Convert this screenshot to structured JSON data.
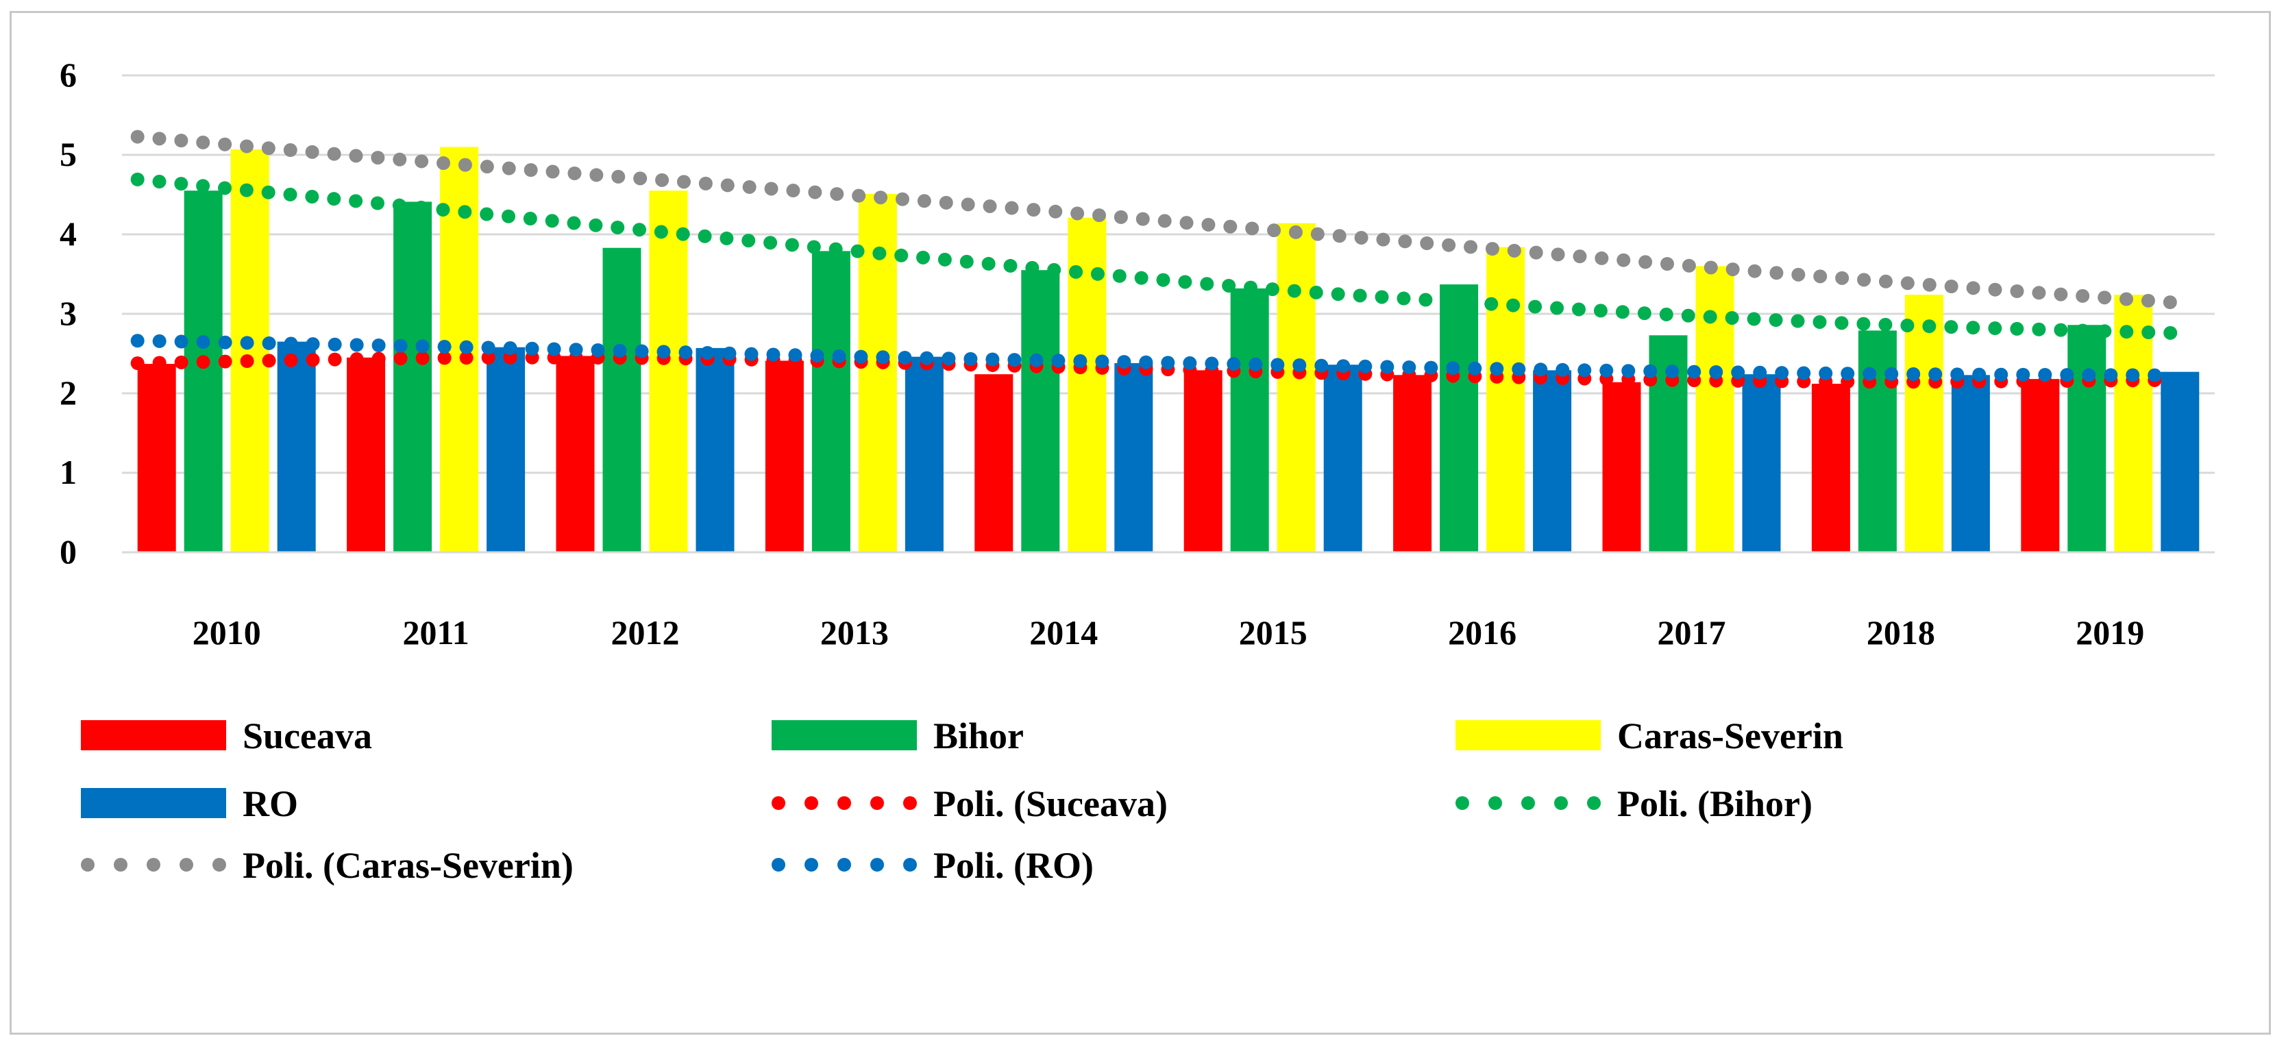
{
  "chart_data": {
    "type": "bar",
    "title": "",
    "xlabel": "",
    "ylabel": "",
    "ylim": [
      0,
      6
    ],
    "yticks": [
      0,
      1,
      2,
      3,
      4,
      5,
      6
    ],
    "grid": true,
    "legend_position": "bottom",
    "categories": [
      "2010",
      "2011",
      "2012",
      "2013",
      "2014",
      "2015",
      "2016",
      "2017",
      "2018",
      "2019"
    ],
    "series": [
      {
        "name": "Suceava",
        "color": "#ff0000",
        "values": [
          2.37,
          2.45,
          2.47,
          2.41,
          2.24,
          2.29,
          2.23,
          2.14,
          2.12,
          2.18
        ]
      },
      {
        "name": "Bihor",
        "color": "#00b050",
        "values": [
          4.55,
          4.41,
          3.83,
          3.79,
          3.55,
          3.32,
          3.37,
          2.73,
          2.79,
          2.86
        ]
      },
      {
        "name": "Caras-Severin",
        "color": "#ffff00",
        "values": [
          5.07,
          5.1,
          4.55,
          4.51,
          4.21,
          4.14,
          3.84,
          3.6,
          3.24,
          3.24
        ]
      },
      {
        "name": "RO",
        "color": "#0070c0",
        "values": [
          2.65,
          2.58,
          2.57,
          2.46,
          2.38,
          2.36,
          2.29,
          2.24,
          2.23,
          2.27
        ]
      }
    ],
    "trendlines": [
      {
        "name": "Poli. (Suceava)",
        "color": "#ff0000",
        "values": [
          2.4,
          2.45,
          2.45,
          2.4,
          2.33,
          2.27,
          2.21,
          2.16,
          2.14,
          2.16
        ]
      },
      {
        "name": "Poli. (Bihor)",
        "color": "#00b050",
        "values": [
          4.58,
          4.32,
          4.05,
          3.79,
          3.54,
          3.3,
          3.13,
          2.97,
          2.85,
          2.78
        ]
      },
      {
        "name": "Poli. (Caras-Severin)",
        "color": "#8c8c8c",
        "values": [
          5.13,
          4.9,
          4.7,
          4.49,
          4.28,
          4.05,
          3.83,
          3.6,
          3.39,
          3.2
        ]
      },
      {
        "name": "Poli. (RO)",
        "color": "#0070c0",
        "values": [
          2.64,
          2.59,
          2.53,
          2.46,
          2.41,
          2.36,
          2.31,
          2.27,
          2.24,
          2.23
        ]
      }
    ],
    "legend": [
      {
        "label": "Suceava",
        "kind": "bar",
        "color": "#ff0000"
      },
      {
        "label": "Bihor",
        "kind": "bar",
        "color": "#00b050"
      },
      {
        "label": "Caras-Severin",
        "kind": "bar",
        "color": "#ffff00"
      },
      {
        "label": "RO",
        "kind": "bar",
        "color": "#0070c0"
      },
      {
        "label": "Poli. (Suceava)",
        "kind": "dots",
        "color": "#ff0000"
      },
      {
        "label": "Poli. (Bihor)",
        "kind": "dots",
        "color": "#00b050"
      },
      {
        "label": "Poli. (Caras-Severin)",
        "kind": "dots",
        "color": "#8c8c8c"
      },
      {
        "label": "Poli. (RO)",
        "kind": "dots",
        "color": "#0070c0"
      }
    ]
  }
}
